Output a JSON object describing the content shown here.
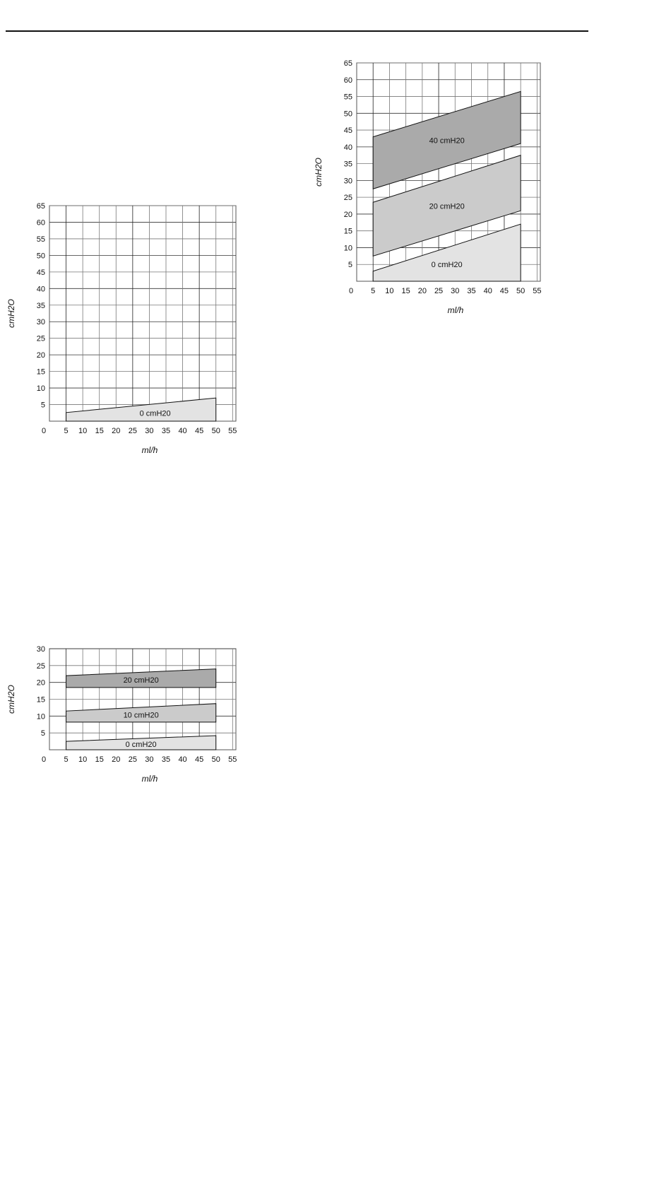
{
  "chart_data": [
    {
      "type": "area",
      "id": "chart-a",
      "xlabel": "ml/h",
      "ylabel": "cmH2O",
      "xticks": [
        0,
        5,
        10,
        15,
        20,
        25,
        30,
        35,
        40,
        45,
        50,
        55
      ],
      "yticks": [
        5,
        10,
        15,
        20,
        25,
        30,
        35,
        40,
        45,
        50,
        55,
        60,
        65
      ],
      "xlim": [
        0,
        56
      ],
      "ylim": [
        0,
        65
      ],
      "grid": true,
      "series": [
        {
          "name": "0 cmH20",
          "x": [
            5,
            50
          ],
          "lower": [
            0,
            0
          ],
          "upper": [
            2.6,
            7
          ],
          "color": "#e3e3e3"
        }
      ]
    },
    {
      "type": "area",
      "id": "chart-b",
      "xlabel": "ml/h",
      "ylabel": "cmH2O",
      "xticks": [
        0,
        5,
        10,
        15,
        20,
        25,
        30,
        35,
        40,
        45,
        50,
        55
      ],
      "yticks": [
        5,
        10,
        15,
        20,
        25,
        30,
        35,
        40,
        45,
        50,
        55,
        60,
        65
      ],
      "xlim": [
        0,
        56
      ],
      "ylim": [
        0,
        65
      ],
      "grid": true,
      "series": [
        {
          "name": "0 cmH20",
          "x": [
            5,
            50
          ],
          "lower": [
            0,
            0
          ],
          "upper": [
            3,
            17
          ],
          "color": "#e3e3e3"
        },
        {
          "name": "20 cmH20",
          "x": [
            5,
            50
          ],
          "lower": [
            7.5,
            21
          ],
          "upper": [
            23.5,
            37.5
          ],
          "color": "#cbcbcb"
        },
        {
          "name": "40 cmH20",
          "x": [
            5,
            50
          ],
          "lower": [
            27.5,
            41
          ],
          "upper": [
            43,
            56.5
          ],
          "color": "#aaaaaa"
        }
      ]
    },
    {
      "type": "area",
      "id": "chart-c",
      "xlabel": "ml/h",
      "ylabel": "cmH2O",
      "xticks": [
        0,
        5,
        10,
        15,
        20,
        25,
        30,
        35,
        40,
        45,
        50,
        55
      ],
      "yticks": [
        5,
        10,
        15,
        20,
        25,
        30
      ],
      "xlim": [
        0,
        56
      ],
      "ylim": [
        0,
        30
      ],
      "grid": true,
      "series": [
        {
          "name": "0 cmH20",
          "x": [
            5,
            50
          ],
          "lower": [
            0,
            0
          ],
          "upper": [
            2.5,
            4.2
          ],
          "color": "#e3e3e3"
        },
        {
          "name": "10 cmH20",
          "x": [
            5,
            50
          ],
          "lower": [
            8.2,
            8.2
          ],
          "upper": [
            11.5,
            13.7
          ],
          "color": "#cbcbcb"
        },
        {
          "name": "20 cmH20",
          "x": [
            5,
            50
          ],
          "lower": [
            18.5,
            18.5
          ],
          "upper": [
            22,
            24
          ],
          "color": "#aaaaaa"
        }
      ]
    }
  ]
}
